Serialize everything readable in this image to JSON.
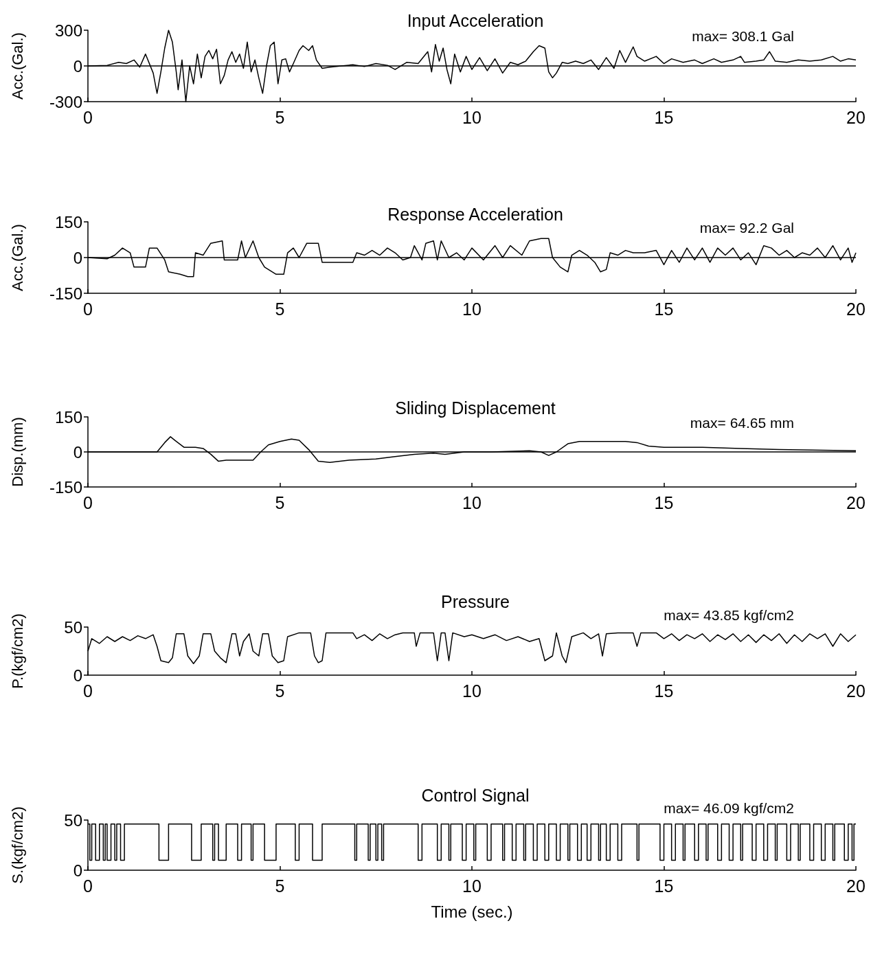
{
  "chart_data": [
    {
      "type": "line",
      "title": "Input Acceleration",
      "ylabel": "Acc.(Gal.)",
      "color": "#000000",
      "xlim": [
        0,
        20
      ],
      "xticks": [
        0,
        5,
        10,
        15,
        20
      ],
      "ylim": [
        -300,
        300
      ],
      "yticks": [
        -300,
        0,
        300
      ],
      "grid": false,
      "annotations": [
        "max= 308.1 Gal"
      ],
      "ref_lines": [
        {
          "axis": "y",
          "value": 0
        }
      ],
      "x": [
        0,
        0.5,
        0.8,
        1.0,
        1.2,
        1.35,
        1.5,
        1.7,
        1.8,
        1.9,
        2.0,
        2.1,
        2.2,
        2.3,
        2.35,
        2.45,
        2.55,
        2.65,
        2.75,
        2.85,
        2.95,
        3.05,
        3.15,
        3.25,
        3.35,
        3.45,
        3.55,
        3.65,
        3.75,
        3.85,
        3.95,
        4.05,
        4.15,
        4.25,
        4.35,
        4.45,
        4.55,
        4.65,
        4.75,
        4.85,
        4.95,
        5.05,
        5.15,
        5.25,
        5.35,
        5.5,
        5.6,
        5.75,
        5.85,
        5.95,
        6.1,
        6.3,
        6.6,
        6.9,
        7.2,
        7.5,
        7.8,
        8.0,
        8.3,
        8.6,
        8.85,
        8.95,
        9.05,
        9.15,
        9.25,
        9.35,
        9.45,
        9.55,
        9.7,
        9.85,
        10.0,
        10.2,
        10.4,
        10.6,
        10.8,
        11.0,
        11.2,
        11.4,
        11.6,
        11.75,
        11.9,
        12.0,
        12.1,
        12.2,
        12.35,
        12.5,
        12.7,
        12.9,
        13.1,
        13.3,
        13.5,
        13.7,
        13.85,
        14.0,
        14.2,
        14.3,
        14.5,
        14.8,
        15.0,
        15.2,
        15.5,
        15.8,
        16.0,
        16.3,
        16.5,
        16.8,
        17.0,
        17.1,
        17.4,
        17.6,
        17.75,
        17.9,
        18.2,
        18.5,
        18.8,
        19.1,
        19.4,
        19.6,
        19.8,
        20
      ],
      "values": [
        0,
        5,
        30,
        20,
        50,
        -10,
        100,
        -60,
        -230,
        -50,
        150,
        300,
        200,
        -50,
        -200,
        50,
        -300,
        0,
        -150,
        100,
        -100,
        80,
        130,
        60,
        140,
        -150,
        -80,
        50,
        120,
        30,
        100,
        -20,
        200,
        -50,
        50,
        -100,
        -230,
        0,
        170,
        200,
        -150,
        50,
        60,
        -50,
        20,
        130,
        170,
        130,
        170,
        50,
        -20,
        -10,
        0,
        10,
        -5,
        20,
        5,
        -30,
        30,
        20,
        120,
        -50,
        180,
        40,
        150,
        -30,
        -150,
        100,
        -50,
        80,
        -30,
        70,
        -40,
        60,
        -60,
        30,
        10,
        40,
        120,
        170,
        150,
        -50,
        -100,
        -60,
        30,
        20,
        40,
        20,
        50,
        -30,
        70,
        -20,
        130,
        30,
        160,
        80,
        40,
        80,
        20,
        60,
        30,
        50,
        20,
        60,
        30,
        50,
        80,
        30,
        40,
        50,
        120,
        40,
        30,
        50,
        40,
        50,
        80,
        40,
        60,
        50
      ]
    },
    {
      "type": "line",
      "title": "Response Acceleration",
      "ylabel": "Acc.(Gal.)",
      "color": "#000000",
      "xlim": [
        0,
        20
      ],
      "xticks": [
        0,
        5,
        10,
        15,
        20
      ],
      "ylim": [
        -150,
        150
      ],
      "yticks": [
        -150,
        0,
        150
      ],
      "grid": false,
      "annotations": [
        "max= 92.2 Gal"
      ],
      "ref_lines": [
        {
          "axis": "y",
          "value": 0
        }
      ],
      "x": [
        0,
        0.5,
        0.7,
        0.9,
        1.1,
        1.2,
        1.5,
        1.6,
        1.8,
        2.0,
        2.1,
        2.4,
        2.6,
        2.75,
        2.8,
        3.0,
        3.2,
        3.5,
        3.55,
        3.9,
        4.0,
        4.1,
        4.3,
        4.45,
        4.6,
        4.9,
        5.1,
        5.2,
        5.35,
        5.5,
        5.7,
        6.0,
        6.1,
        6.9,
        7.0,
        7.2,
        7.4,
        7.6,
        7.8,
        8.0,
        8.2,
        8.4,
        8.5,
        8.7,
        8.8,
        9.0,
        9.1,
        9.2,
        9.4,
        9.6,
        9.8,
        10.0,
        10.3,
        10.6,
        10.8,
        11.0,
        11.3,
        11.5,
        11.8,
        12.0,
        12.1,
        12.3,
        12.5,
        12.6,
        12.8,
        13.0,
        13.2,
        13.35,
        13.5,
        13.6,
        13.8,
        14.0,
        14.2,
        14.5,
        14.8,
        15.0,
        15.2,
        15.4,
        15.6,
        15.8,
        16.0,
        16.2,
        16.4,
        16.6,
        16.8,
        17.0,
        17.2,
        17.4,
        17.6,
        17.8,
        18.0,
        18.2,
        18.4,
        18.6,
        18.8,
        19.0,
        19.2,
        19.4,
        19.6,
        19.8,
        19.9,
        20
      ],
      "values": [
        0,
        -5,
        10,
        40,
        20,
        -40,
        -40,
        40,
        40,
        -10,
        -60,
        -70,
        -80,
        -80,
        20,
        10,
        60,
        70,
        -10,
        -10,
        70,
        0,
        70,
        0,
        -40,
        -70,
        -70,
        20,
        40,
        0,
        60,
        60,
        -20,
        -20,
        20,
        10,
        30,
        10,
        40,
        20,
        -10,
        0,
        50,
        -10,
        60,
        70,
        -10,
        70,
        0,
        20,
        -10,
        40,
        -10,
        50,
        0,
        50,
        10,
        70,
        80,
        80,
        0,
        -40,
        -60,
        10,
        30,
        10,
        -20,
        -60,
        -50,
        20,
        10,
        30,
        20,
        20,
        30,
        -30,
        30,
        -20,
        40,
        -10,
        40,
        -20,
        40,
        10,
        40,
        -10,
        20,
        -30,
        50,
        40,
        10,
        30,
        0,
        20,
        10,
        40,
        0,
        50,
        -10,
        40,
        -20,
        20
      ]
    },
    {
      "type": "line",
      "title": "Sliding Displacement",
      "ylabel": "Disp.(mm)",
      "color": "#000000",
      "xlim": [
        0,
        20
      ],
      "xticks": [
        0,
        5,
        10,
        15,
        20
      ],
      "ylim": [
        -150,
        150
      ],
      "yticks": [
        -150,
        0,
        150
      ],
      "grid": false,
      "annotations": [
        "max= 64.65 mm"
      ],
      "ref_lines": [
        {
          "axis": "y",
          "value": 0
        }
      ],
      "x": [
        0,
        1.8,
        2.0,
        2.15,
        2.3,
        2.5,
        2.8,
        3.0,
        3.2,
        3.4,
        3.6,
        4.0,
        4.3,
        4.5,
        4.7,
        5.0,
        5.3,
        5.5,
        5.75,
        6.0,
        6.3,
        6.8,
        7.5,
        8.0,
        8.5,
        9.0,
        9.3,
        9.8,
        10.5,
        11.5,
        11.8,
        12.0,
        12.2,
        12.5,
        12.8,
        13.5,
        14.0,
        14.3,
        14.6,
        15,
        16,
        17,
        18,
        20
      ],
      "values": [
        0,
        0,
        40,
        65,
        45,
        20,
        20,
        15,
        -10,
        -40,
        -35,
        -35,
        -35,
        0,
        30,
        45,
        55,
        50,
        10,
        -40,
        -45,
        -35,
        -30,
        -20,
        -10,
        -5,
        -10,
        0,
        0,
        5,
        0,
        -15,
        0,
        35,
        45,
        45,
        45,
        40,
        25,
        20,
        20,
        15,
        10,
        5
      ]
    },
    {
      "type": "line",
      "title": "Pressure",
      "ylabel": "P.(kgf/cm2)",
      "color": "#000000",
      "xlim": [
        0,
        20
      ],
      "xticks": [
        0,
        5,
        10,
        15,
        20
      ],
      "ylim": [
        0,
        50
      ],
      "yticks": [
        0,
        50
      ],
      "grid": false,
      "annotations": [
        "max= 43.85 kgf/cm2"
      ],
      "x": [
        0,
        0.1,
        0.3,
        0.5,
        0.7,
        0.9,
        1.1,
        1.3,
        1.5,
        1.7,
        1.8,
        1.9,
        2.1,
        2.2,
        2.3,
        2.5,
        2.6,
        2.75,
        2.9,
        3.0,
        3.2,
        3.3,
        3.45,
        3.6,
        3.75,
        3.85,
        3.95,
        4.05,
        4.2,
        4.3,
        4.45,
        4.55,
        4.7,
        4.8,
        4.95,
        5.1,
        5.2,
        5.5,
        5.8,
        5.9,
        6.0,
        6.1,
        6.2,
        6.9,
        7.0,
        7.2,
        7.4,
        7.6,
        7.8,
        8.0,
        8.2,
        8.5,
        8.55,
        8.65,
        9.0,
        9.1,
        9.2,
        9.3,
        9.4,
        9.5,
        9.8,
        10.0,
        10.3,
        10.6,
        10.9,
        11.2,
        11.5,
        11.75,
        11.9,
        12.1,
        12.2,
        12.35,
        12.45,
        12.6,
        12.9,
        13.1,
        13.3,
        13.4,
        13.5,
        13.8,
        14.2,
        14.3,
        14.4,
        14.8,
        15.0,
        15.2,
        15.4,
        15.6,
        15.8,
        16.0,
        16.2,
        16.4,
        16.6,
        16.8,
        17.0,
        17.2,
        17.4,
        17.6,
        17.8,
        18.0,
        18.2,
        18.4,
        18.6,
        18.8,
        19.0,
        19.2,
        19.4,
        19.6,
        19.8,
        20
      ],
      "values": [
        25,
        38,
        33,
        40,
        35,
        40,
        36,
        41,
        38,
        42,
        30,
        15,
        13,
        18,
        43,
        43,
        20,
        12,
        20,
        43,
        43,
        25,
        18,
        13,
        43,
        43,
        20,
        35,
        43,
        25,
        20,
        43,
        43,
        20,
        13,
        15,
        40,
        44,
        44,
        20,
        13,
        15,
        44,
        44,
        38,
        42,
        36,
        43,
        38,
        42,
        44,
        44,
        30,
        44,
        44,
        15,
        44,
        44,
        15,
        44,
        40,
        42,
        38,
        42,
        36,
        40,
        35,
        38,
        15,
        20,
        44,
        20,
        13,
        40,
        44,
        38,
        43,
        20,
        43,
        44,
        44,
        30,
        44,
        44,
        38,
        43,
        36,
        42,
        38,
        43,
        35,
        42,
        37,
        43,
        35,
        42,
        34,
        42,
        36,
        43,
        33,
        42,
        35,
        43,
        38,
        43,
        30,
        43,
        35,
        42
      ]
    },
    {
      "type": "step",
      "title": "Control Signal",
      "ylabel": "S.(kgf/cm2)",
      "xlabel": "Time (sec.)",
      "color": "#000000",
      "xlim": [
        0,
        20
      ],
      "xticks": [
        0,
        5,
        10,
        15,
        20
      ],
      "ylim": [
        0,
        50
      ],
      "yticks": [
        0,
        50
      ],
      "grid": false,
      "annotations": [
        "max= 46.09 kgf/cm2"
      ],
      "x": [
        0,
        0.05,
        0.1,
        0.2,
        0.3,
        0.4,
        0.45,
        0.5,
        0.6,
        0.7,
        0.75,
        0.85,
        0.95,
        1.85,
        2.1,
        2.7,
        2.95,
        3.25,
        3.3,
        3.4,
        3.6,
        3.9,
        4.0,
        4.25,
        4.3,
        4.6,
        4.9,
        5.4,
        5.5,
        5.85,
        6.1,
        6.95,
        7.0,
        7.3,
        7.35,
        7.5,
        7.55,
        7.65,
        7.7,
        8.6,
        8.7,
        9.1,
        9.2,
        9.4,
        9.45,
        9.75,
        9.85,
        10.05,
        10.1,
        10.4,
        10.5,
        10.8,
        10.85,
        11.05,
        11.15,
        11.35,
        11.4,
        11.6,
        11.7,
        11.9,
        12.0,
        12.2,
        12.3,
        12.5,
        12.55,
        12.75,
        12.85,
        13.0,
        13.1,
        13.3,
        13.35,
        13.5,
        13.6,
        13.8,
        13.9,
        14.3,
        14.35,
        14.9,
        15.0,
        15.2,
        15.3,
        15.5,
        15.55,
        15.8,
        15.9,
        16.1,
        16.15,
        16.4,
        16.5,
        16.7,
        16.8,
        17.0,
        17.05,
        17.3,
        17.4,
        17.6,
        17.7,
        17.9,
        17.95,
        18.2,
        18.3,
        18.5,
        18.55,
        18.8,
        18.9,
        19.1,
        19.2,
        19.4,
        19.45,
        19.7,
        19.8,
        19.9,
        19.95,
        20
      ],
      "values": [
        46,
        10,
        46,
        10,
        46,
        10,
        46,
        10,
        46,
        10,
        46,
        10,
        46,
        10,
        46,
        10,
        46,
        10,
        46,
        10,
        46,
        10,
        46,
        10,
        46,
        10,
        46,
        10,
        46,
        10,
        46,
        10,
        46,
        10,
        46,
        10,
        46,
        10,
        46,
        10,
        46,
        10,
        46,
        10,
        46,
        10,
        46,
        10,
        46,
        10,
        46,
        10,
        46,
        10,
        46,
        10,
        46,
        10,
        46,
        10,
        46,
        10,
        46,
        10,
        46,
        10,
        46,
        10,
        46,
        10,
        46,
        10,
        46,
        10,
        46,
        10,
        46,
        10,
        46,
        10,
        46,
        10,
        46,
        10,
        46,
        10,
        46,
        10,
        46,
        10,
        46,
        10,
        46,
        10,
        46,
        10,
        46,
        10,
        46,
        10,
        46,
        10,
        46,
        10,
        46,
        10,
        46,
        10,
        46,
        10,
        46,
        10,
        46,
        46
      ]
    }
  ]
}
